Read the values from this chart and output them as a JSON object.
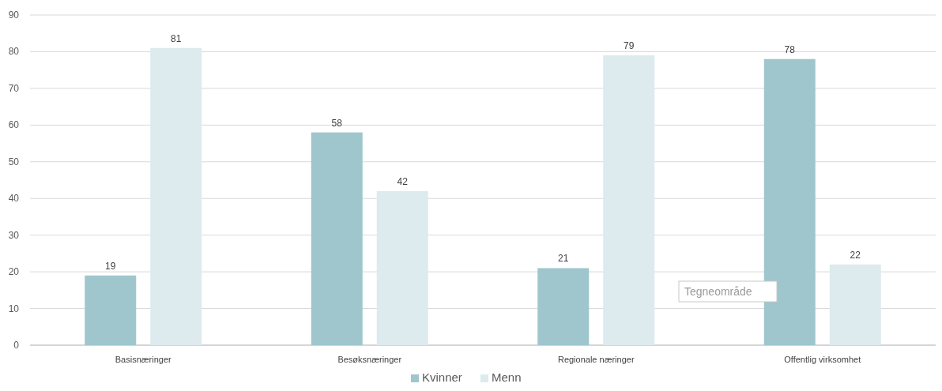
{
  "chart_data": {
    "type": "bar",
    "categories": [
      "Basisnæringer",
      "Besøksnæringer",
      "Regionale næringer",
      "Offentlig virksomhet"
    ],
    "series": [
      {
        "name": "Kvinner",
        "color": "#9fc6cd",
        "values": [
          19,
          58,
          21,
          78
        ]
      },
      {
        "name": "Menn",
        "color": "#ddeaee",
        "values": [
          81,
          42,
          79,
          22
        ]
      }
    ],
    "ylim": [
      0,
      90
    ],
    "yticks": [
      0,
      10,
      20,
      30,
      40,
      50,
      60,
      70,
      80,
      90
    ],
    "grid": "y",
    "legend": "bottom",
    "data_labels": true,
    "annotations": [
      "Tegneområde"
    ]
  }
}
